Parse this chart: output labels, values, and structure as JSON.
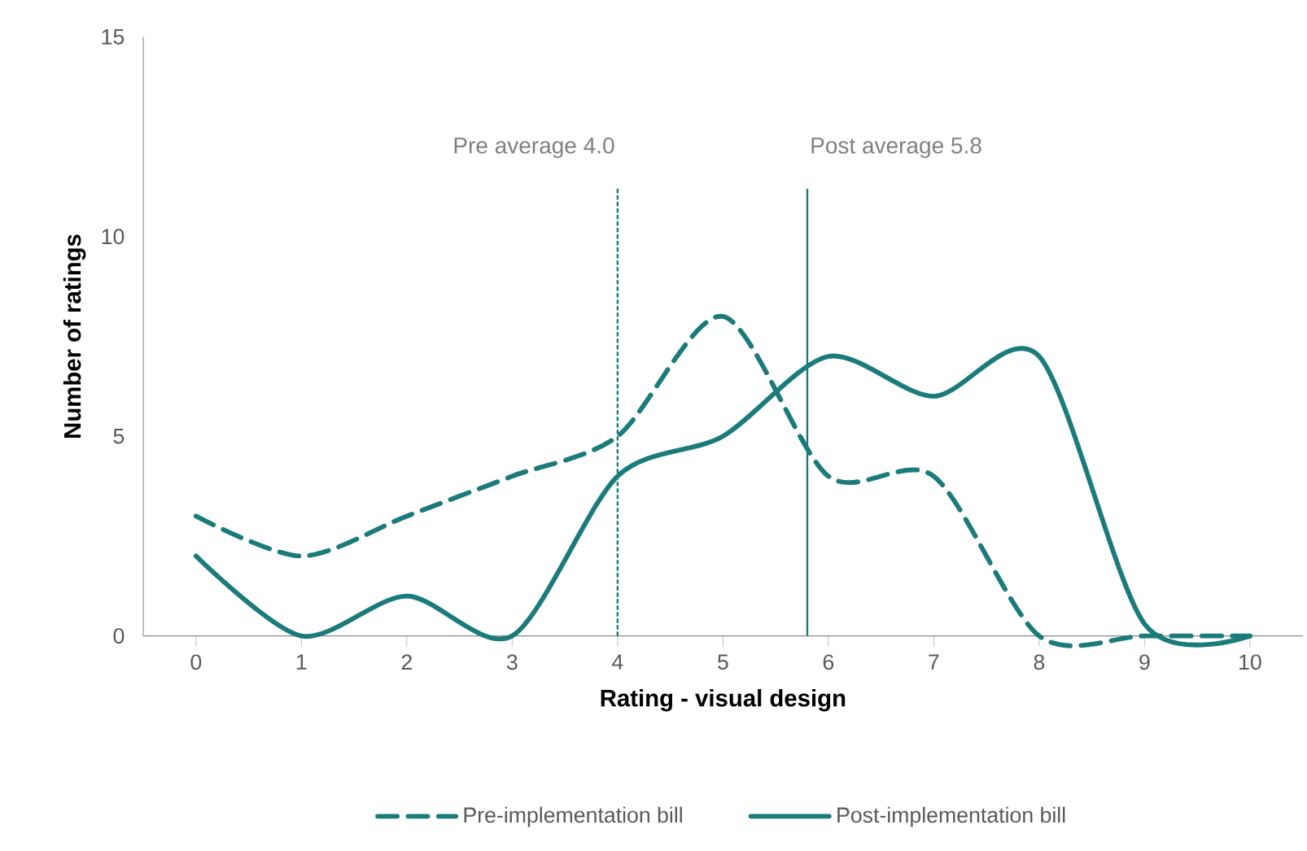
{
  "chart_data": {
    "type": "line",
    "xlabel": "Rating - visual design",
    "ylabel": "Number of ratings",
    "x": [
      0,
      1,
      2,
      3,
      4,
      5,
      6,
      7,
      8,
      9,
      10
    ],
    "series": [
      {
        "name": "Pre-implementation bill",
        "color": "#1b7b7b",
        "line_style": "dashed",
        "values": [
          3,
          2,
          3,
          4,
          5,
          8,
          4,
          4,
          0,
          0,
          0
        ]
      },
      {
        "name": "Post-implementation bill",
        "color": "#1b7b7b",
        "line_style": "solid",
        "values": [
          2,
          0,
          1,
          0,
          4,
          5,
          7,
          6,
          7,
          0.3,
          0
        ]
      }
    ],
    "xlim": [
      -0.5,
      10.5
    ],
    "xticks": [
      0,
      1,
      2,
      3,
      4,
      5,
      6,
      7,
      8,
      9,
      10
    ],
    "ylim": [
      0,
      15
    ],
    "yticks": [
      0,
      5,
      10,
      15
    ],
    "ref_lines": [
      {
        "axis": "x",
        "value": 4.0,
        "label": "Pre average 4.0",
        "color": "#1b7b7b",
        "line_style": "dashed"
      },
      {
        "axis": "x",
        "value": 5.8,
        "label": "Post average 5.8",
        "color": "#1b7b7b",
        "line_style": "solid"
      }
    ],
    "grid": false,
    "legend": "bottom",
    "marker": "none"
  }
}
